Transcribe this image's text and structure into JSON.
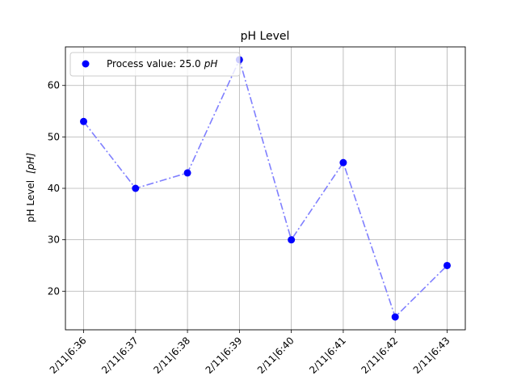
{
  "chart_data": {
    "type": "line",
    "title": "pH Level",
    "xlabel": "",
    "ylabel": "pH Level",
    "ylabel_unit": "[pH]",
    "categories": [
      "2/11|6:36",
      "2/11|6:37",
      "2/11|6:38",
      "2/11|6:39",
      "2/11|6:40",
      "2/11|6:41",
      "2/11|6:42",
      "2/11|6:43"
    ],
    "series": [
      {
        "values": [
          53,
          40,
          43,
          65,
          30,
          45,
          15,
          25
        ]
      }
    ],
    "ylim": [
      12.5,
      67.5
    ],
    "yticks": [
      20,
      30,
      40,
      50,
      60
    ],
    "grid": true,
    "legend": {
      "placement": "top-left",
      "label": "Process value: 25.0",
      "unit": "pH"
    },
    "colors": {
      "marker": "#0000ff",
      "line": "#7f7fff",
      "grid": "#b0b0b0"
    }
  }
}
